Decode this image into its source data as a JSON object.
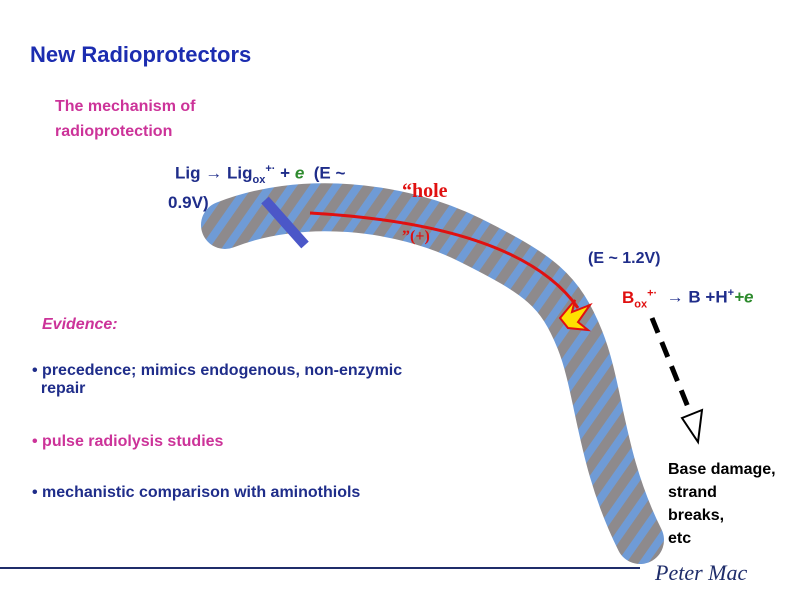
{
  "header": {
    "title": "New Radioprotectors",
    "subtitle_lines": [
      "The mechanism of",
      "radioprotection"
    ]
  },
  "ligand_equation": {
    "lig": "Lig",
    "arrow": "→",
    "lig_ox": "Lig",
    "ox": "ox",
    "charge": "+·",
    "plus": "+",
    "electron": "e",
    "potential_start": "(E ~",
    "potential_end": "0.9V)"
  },
  "hole_label": {
    "line1": "“hole",
    "line2": "”(+)"
  },
  "base_potential": "(E ~ 1.2V)",
  "base_equation": {
    "b_ox": "B",
    "ox": "ox",
    "charge": "+·",
    "arrow": "→",
    "products": "B +H",
    "proton_charge": "+",
    "plus_e": "+e"
  },
  "evidence": {
    "label": "Evidence:",
    "bullets": [
      [
        "precedence; mimics endogenous, non-enzymic",
        "repair"
      ],
      [
        "pulse radiolysis studies"
      ],
      [
        "mechanistic comparison with aminothiols"
      ]
    ]
  },
  "outcome_lines": [
    "Base damage,",
    "strand",
    "breaks,",
    "etc"
  ],
  "logo": "Peter Mac"
}
